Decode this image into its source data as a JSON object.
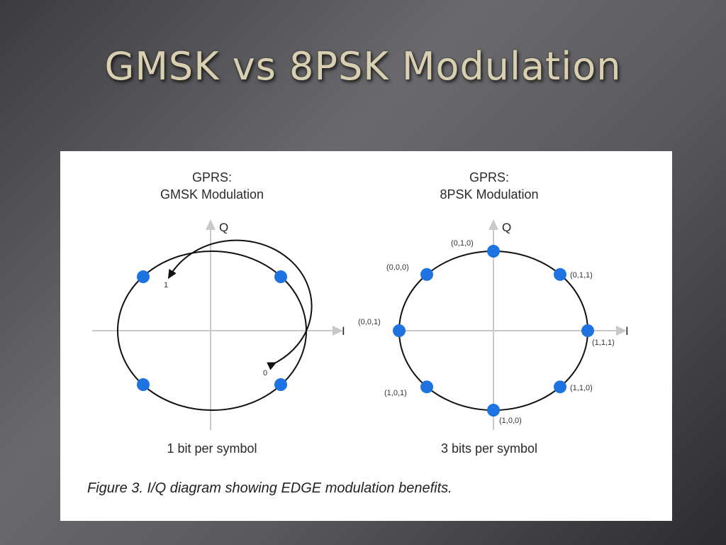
{
  "slide": {
    "title": "GMSK vs 8PSK Modulation"
  },
  "figure": {
    "caption": "Figure 3. I/Q diagram showing EDGE modulation benefits.",
    "point_color": "#1e73e0",
    "left": {
      "heading_line1": "GPRS:",
      "heading_line2": "GMSK Modulation",
      "i_label": "I",
      "q_label": "Q",
      "arrow_label_top": "1",
      "arrow_label_bottom": "0",
      "footer": "1 bit per symbol"
    },
    "right": {
      "heading_line1": "GPRS:",
      "heading_line2": "8PSK Modulation",
      "i_label": "I",
      "q_label": "Q",
      "footer": "3 bits per symbol",
      "points": [
        {
          "label": "(0,1,0)"
        },
        {
          "label": "(0,1,1)"
        },
        {
          "label": "(1,1,1)"
        },
        {
          "label": "(1,1,0)"
        },
        {
          "label": "(1,0,0)"
        },
        {
          "label": "(1,0,1)"
        },
        {
          "label": "(0,0,1)"
        },
        {
          "label": "(0,0,0)"
        }
      ]
    }
  }
}
